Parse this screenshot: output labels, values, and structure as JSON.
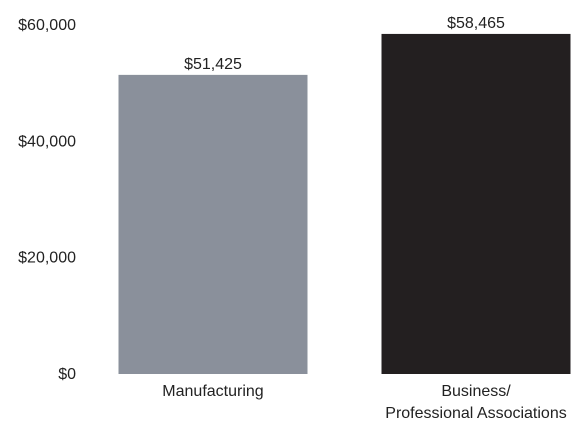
{
  "chart_data": {
    "type": "bar",
    "title": "",
    "xlabel": "",
    "ylabel": "",
    "categories": [
      [
        "Manufacturing"
      ],
      [
        "Business/",
        "Professional Associations"
      ]
    ],
    "values": [
      51425,
      58465
    ],
    "value_labels": [
      "$51,425",
      "$58,465"
    ],
    "bar_colors": [
      "#8a909b",
      "#231f20"
    ],
    "ylim": [
      0,
      60000
    ],
    "yticks": [
      0,
      20000,
      40000,
      60000
    ],
    "ytick_labels": [
      "$0",
      "$20,000",
      "$40,000",
      "$60,000"
    ],
    "grid": false,
    "legend": "none"
  }
}
